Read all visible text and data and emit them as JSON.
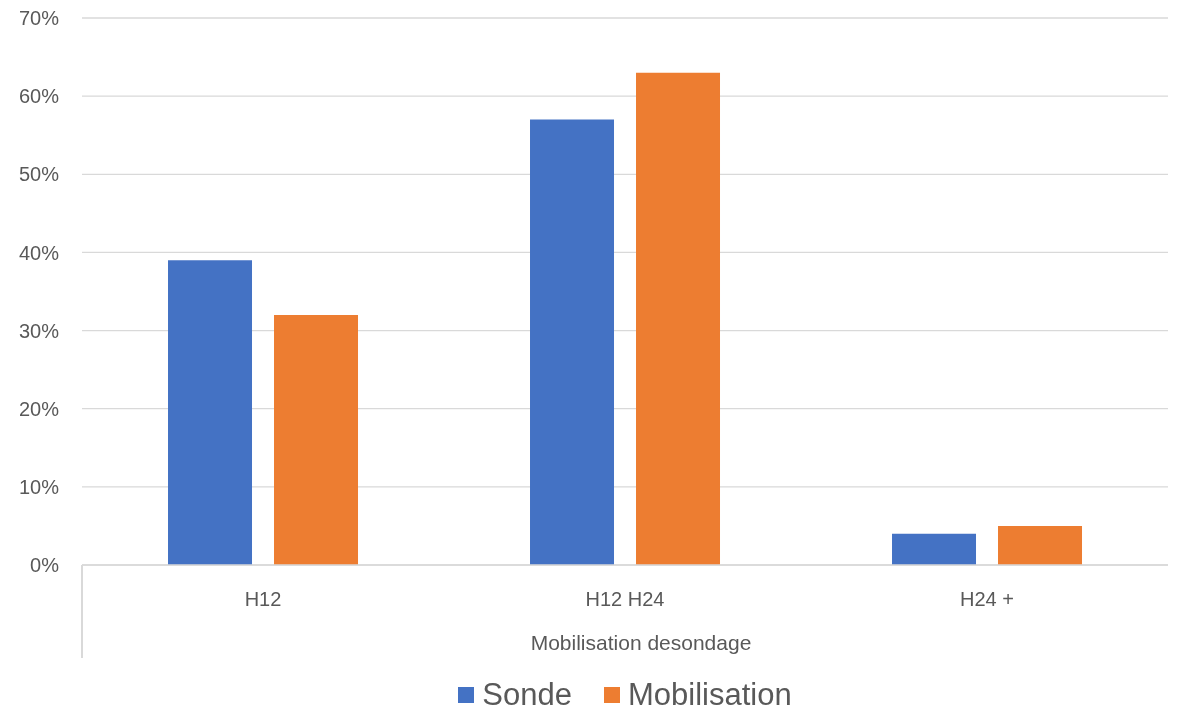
{
  "chart_data": {
    "type": "bar",
    "xlabel": "Mobilisation desondage",
    "categories": [
      "H12",
      "H12 H24",
      "H24 +"
    ],
    "series": [
      {
        "name": "Sonde",
        "color": "#4472c4",
        "values": [
          39,
          57,
          4
        ]
      },
      {
        "name": "Mobilisation",
        "color": "#ed7d31",
        "values": [
          32,
          63,
          5
        ]
      }
    ],
    "ylim": [
      0,
      70
    ],
    "yticks": [
      {
        "value": 0,
        "label": "0%"
      },
      {
        "value": 10,
        "label": "10%"
      },
      {
        "value": 20,
        "label": "20%"
      },
      {
        "value": 30,
        "label": "30%"
      },
      {
        "value": 40,
        "label": "40%"
      },
      {
        "value": 50,
        "label": "50%"
      },
      {
        "value": 60,
        "label": "60%"
      },
      {
        "value": 70,
        "label": "70%"
      }
    ],
    "grid": "y",
    "legend": "bottom"
  }
}
